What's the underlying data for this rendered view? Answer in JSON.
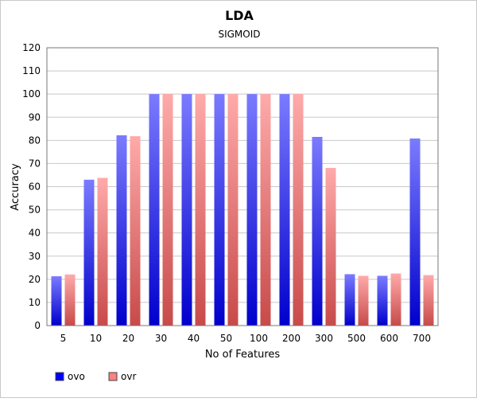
{
  "chart_data": {
    "type": "bar",
    "title": "LDA",
    "subtitle": "SIGMOID",
    "xlabel": "No of Features",
    "ylabel": "Accuracy",
    "ylim": [
      0,
      120
    ],
    "y_ticks": [
      0,
      10,
      20,
      30,
      40,
      50,
      60,
      70,
      80,
      90,
      100,
      110,
      120
    ],
    "categories": [
      "5",
      "10",
      "20",
      "30",
      "40",
      "50",
      "100",
      "200",
      "300",
      "500",
      "600",
      "700"
    ],
    "series": [
      {
        "name": "ovo",
        "values": [
          21.3,
          63,
          82.2,
          100,
          100,
          100,
          100,
          100,
          81.5,
          22.2,
          21.5,
          80.8
        ],
        "color_top": "#7b7bff",
        "color_bottom": "#0000cc",
        "legend_color": "#0000ff"
      },
      {
        "name": "ovr",
        "values": [
          22.1,
          63.8,
          81.8,
          100,
          100,
          100,
          100,
          100,
          68.1,
          21.5,
          22.5,
          21.8
        ],
        "color_top": "#ffaaaa",
        "color_bottom": "#c84a4a",
        "legend_color": "#ff8080"
      }
    ],
    "grid": true,
    "legend_position": "bottom-left"
  }
}
